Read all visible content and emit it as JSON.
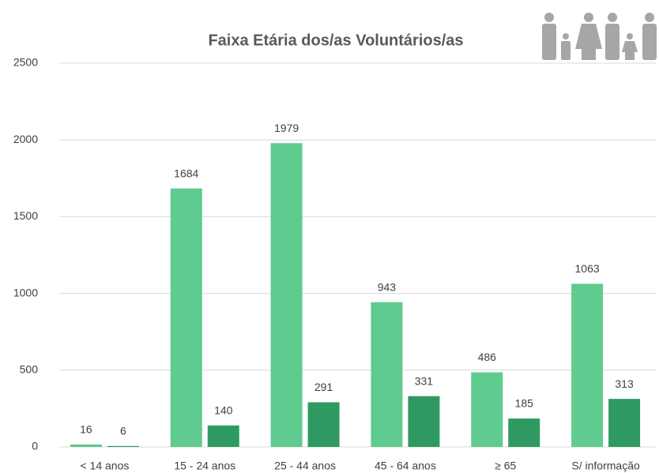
{
  "chart_data": {
    "type": "bar",
    "title": "Faixa Etária dos/as Voluntários/as",
    "categories": [
      "< 14 anos",
      "15 - 24 anos",
      "25 - 44 anos",
      "45 - 64 anos",
      "≥ 65",
      "S/ informação"
    ],
    "series": [
      {
        "color": "#5fcb8f",
        "values": [
          16,
          1684,
          1979,
          943,
          486,
          1063
        ]
      },
      {
        "color": "#2e9a62",
        "values": [
          6,
          140,
          291,
          331,
          185,
          313
        ]
      }
    ],
    "ylim": [
      0,
      2500
    ],
    "yticks": [
      0,
      500,
      1000,
      1500,
      2000,
      2500
    ],
    "grid": true
  }
}
